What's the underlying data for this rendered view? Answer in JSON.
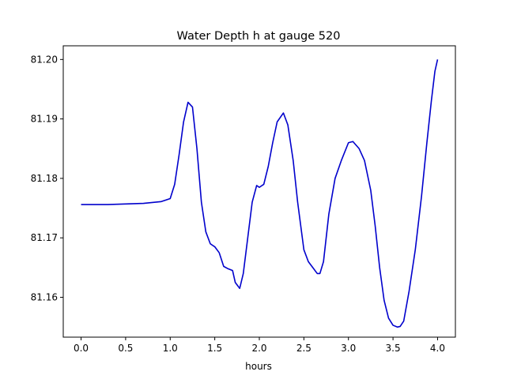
{
  "chart_data": {
    "type": "line",
    "title": "Water Depth h at gauge 520",
    "xlabel": "hours",
    "ylabel": "",
    "xlim": [
      -0.2,
      4.2
    ],
    "ylim": [
      81.1533,
      81.2023
    ],
    "xticks": [
      {
        "value": 0.0,
        "label": "0.0"
      },
      {
        "value": 0.5,
        "label": "0.5"
      },
      {
        "value": 1.0,
        "label": "1.0"
      },
      {
        "value": 1.5,
        "label": "1.5"
      },
      {
        "value": 2.0,
        "label": "2.0"
      },
      {
        "value": 2.5,
        "label": "2.5"
      },
      {
        "value": 3.0,
        "label": "3.0"
      },
      {
        "value": 3.5,
        "label": "3.5"
      },
      {
        "value": 4.0,
        "label": "4.0"
      }
    ],
    "yticks": [
      {
        "value": 81.16,
        "label": "81.16"
      },
      {
        "value": 81.17,
        "label": "81.17"
      },
      {
        "value": 81.18,
        "label": "81.18"
      },
      {
        "value": 81.19,
        "label": "81.19"
      },
      {
        "value": 81.2,
        "label": "81.20"
      }
    ],
    "grid": false,
    "series": [
      {
        "color": "#0000cc",
        "x": [
          0.0,
          0.3,
          0.7,
          0.9,
          1.0,
          1.05,
          1.1,
          1.15,
          1.2,
          1.25,
          1.3,
          1.35,
          1.4,
          1.45,
          1.5,
          1.55,
          1.6,
          1.65,
          1.7,
          1.73,
          1.78,
          1.82,
          1.87,
          1.92,
          1.97,
          2.0,
          2.05,
          2.1,
          2.15,
          2.2,
          2.27,
          2.32,
          2.38,
          2.43,
          2.5,
          2.55,
          2.6,
          2.65,
          2.68,
          2.72,
          2.78,
          2.85,
          2.92,
          3.0,
          3.05,
          3.12,
          3.18,
          3.25,
          3.3,
          3.35,
          3.4,
          3.45,
          3.5,
          3.55,
          3.58,
          3.62,
          3.68,
          3.75,
          3.82,
          3.88,
          3.93,
          3.97,
          4.0
        ],
        "y": [
          81.1756,
          81.1756,
          81.1758,
          81.1761,
          81.1766,
          81.179,
          81.184,
          81.1895,
          81.1928,
          81.192,
          81.185,
          81.176,
          81.171,
          81.169,
          81.1685,
          81.1675,
          81.1652,
          81.1648,
          81.1645,
          81.1625,
          81.1615,
          81.164,
          81.17,
          81.176,
          81.1788,
          81.1785,
          81.179,
          81.182,
          81.186,
          81.1895,
          81.191,
          81.189,
          81.183,
          81.176,
          81.168,
          81.166,
          81.165,
          81.164,
          81.164,
          81.166,
          81.174,
          81.18,
          81.183,
          81.186,
          81.1862,
          81.185,
          81.183,
          81.178,
          81.172,
          81.165,
          81.1595,
          81.1565,
          81.1553,
          81.155,
          81.1551,
          81.156,
          81.161,
          81.168,
          81.177,
          81.186,
          81.193,
          81.198,
          81.2
        ]
      }
    ]
  }
}
